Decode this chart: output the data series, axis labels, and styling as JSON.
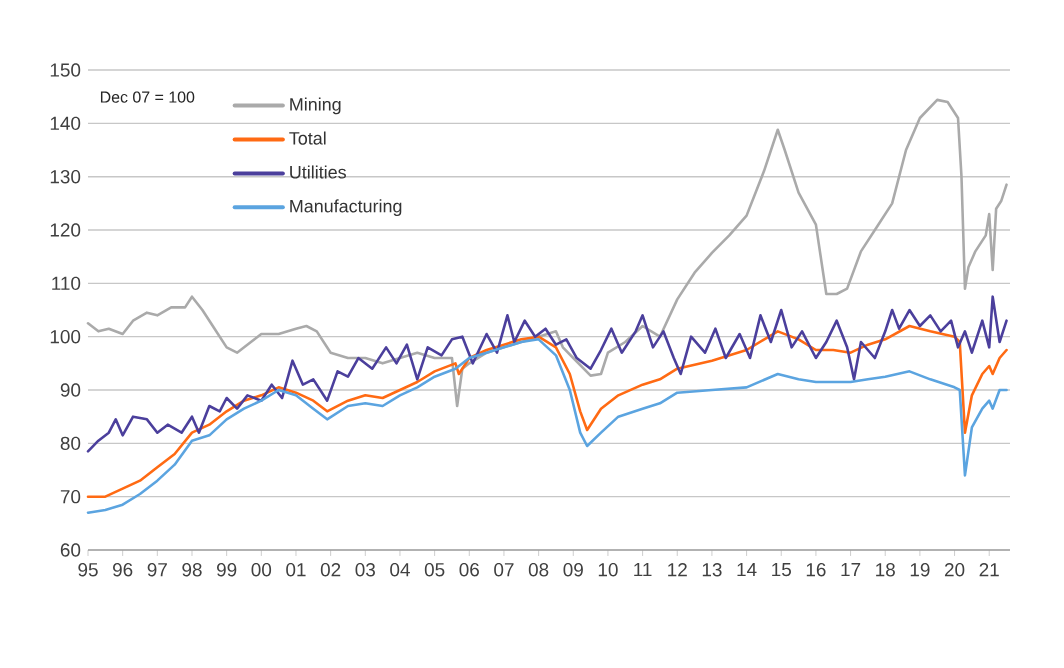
{
  "chart_data": {
    "type": "line",
    "annotations": [
      "Dec 07 = 100"
    ],
    "xlim": [
      1995,
      2021.6
    ],
    "xticks": [
      {
        "value": 1995,
        "label": "95"
      },
      {
        "value": 1996,
        "label": "96"
      },
      {
        "value": 1997,
        "label": "97"
      },
      {
        "value": 1998,
        "label": "98"
      },
      {
        "value": 1999,
        "label": "99"
      },
      {
        "value": 2000,
        "label": "00"
      },
      {
        "value": 2001,
        "label": "01"
      },
      {
        "value": 2002,
        "label": "02"
      },
      {
        "value": 2003,
        "label": "03"
      },
      {
        "value": 2004,
        "label": "04"
      },
      {
        "value": 2005,
        "label": "05"
      },
      {
        "value": 2006,
        "label": "06"
      },
      {
        "value": 2007,
        "label": "07"
      },
      {
        "value": 2008,
        "label": "08"
      },
      {
        "value": 2009,
        "label": "09"
      },
      {
        "value": 2010,
        "label": "10"
      },
      {
        "value": 2011,
        "label": "11"
      },
      {
        "value": 2012,
        "label": "12"
      },
      {
        "value": 2013,
        "label": "13"
      },
      {
        "value": 2014,
        "label": "14"
      },
      {
        "value": 2015,
        "label": "15"
      },
      {
        "value": 2016,
        "label": "16"
      },
      {
        "value": 2017,
        "label": "17"
      },
      {
        "value": 2018,
        "label": "18"
      },
      {
        "value": 2019,
        "label": "19"
      },
      {
        "value": 2020,
        "label": "20"
      },
      {
        "value": 2021,
        "label": "21"
      }
    ],
    "ylim": [
      60,
      150
    ],
    "yticks": [
      60,
      70,
      80,
      90,
      100,
      110,
      120,
      130,
      140,
      150
    ],
    "grid": "y",
    "legend": "top left",
    "series": [
      {
        "name": "Mining",
        "color": "#aaaaaa",
        "x": [
          1995,
          1995.3,
          1995.6,
          1996,
          1996.3,
          1996.7,
          1997,
          1997.4,
          1997.8,
          1998,
          1998.3,
          1998.6,
          1999,
          1999.3,
          1999.7,
          2000,
          2000.5,
          2001,
          2001.3,
          2001.6,
          2002,
          2002.5,
          2003,
          2003.5,
          2004,
          2004.5,
          2005,
          2005.5,
          2005.65,
          2005.8,
          2006,
          2006.5,
          2007,
          2007.5,
          2008,
          2008.5,
          2008.7,
          2009,
          2009.5,
          2009.8,
          2010,
          2010.5,
          2011,
          2011.5,
          2012,
          2012.5,
          2013,
          2013.5,
          2014,
          2014.5,
          2014.9,
          2015.1,
          2015.5,
          2016,
          2016.3,
          2016.6,
          2016.9,
          2017.3,
          2017.8,
          2018.2,
          2018.6,
          2019,
          2019.5,
          2019.8,
          2020.1,
          2020.2,
          2020.3,
          2020.4,
          2020.6,
          2020.9,
          2021,
          2021.1,
          2021.2,
          2021.35,
          2021.5
        ],
        "values": [
          102.5,
          101,
          101.5,
          100.5,
          103,
          104.5,
          104,
          105.5,
          105.5,
          107.5,
          105,
          102,
          98,
          97,
          99,
          100.5,
          100.5,
          101.5,
          102,
          101,
          97,
          96,
          96,
          95,
          96,
          97,
          96,
          96,
          87,
          94,
          95,
          97,
          98,
          99,
          100,
          101,
          98,
          96,
          92.7,
          93,
          97,
          99,
          102,
          100,
          107,
          112,
          115.7,
          119,
          122.7,
          131,
          138.8,
          135,
          127,
          121,
          108,
          108,
          109,
          116,
          121,
          125,
          135,
          141,
          144.4,
          144,
          141,
          130,
          109,
          113,
          116,
          119,
          123,
          112.5,
          124,
          125.5,
          128.5
        ]
      },
      {
        "name": "Total",
        "color": "#ff6a13",
        "x": [
          1995,
          1995.5,
          1996,
          1996.5,
          1997,
          1997.5,
          1998,
          1998.5,
          1999,
          1999.5,
          2000,
          2000.5,
          2001,
          2001.5,
          2001.9,
          2002.5,
          2003,
          2003.5,
          2004,
          2004.5,
          2005,
          2005.6,
          2005.7,
          2006,
          2006.5,
          2007,
          2007.5,
          2008,
          2008.5,
          2008.9,
          2009.2,
          2009.4,
          2009.8,
          2010.3,
          2011,
          2011.5,
          2012,
          2013,
          2014,
          2014.9,
          2015.5,
          2016,
          2016.5,
          2017,
          2017.5,
          2018,
          2018.7,
          2019.3,
          2020,
          2020.15,
          2020.3,
          2020.5,
          2020.8,
          2021,
          2021.1,
          2021.3,
          2021.5
        ],
        "values": [
          70,
          70,
          71.5,
          73,
          75.5,
          78,
          82,
          83.5,
          86,
          88,
          89,
          90.5,
          89.5,
          88,
          86,
          88,
          89,
          88.5,
          90,
          91.5,
          93.5,
          95,
          93,
          96,
          97.5,
          98.5,
          99.5,
          100,
          98,
          93,
          86,
          82.5,
          86.5,
          89,
          91,
          92,
          94,
          95.5,
          97.5,
          101,
          99.5,
          97.5,
          97.5,
          97,
          98.5,
          99.5,
          102,
          101,
          100,
          99,
          82,
          89,
          93,
          94.5,
          93,
          96,
          97.5
        ]
      },
      {
        "name": "Utilities",
        "color": "#4b3f9c",
        "x": [
          1995,
          1995.3,
          1995.6,
          1995.8,
          1996,
          1996.3,
          1996.7,
          1997,
          1997.3,
          1997.7,
          1998,
          1998.2,
          1998.5,
          1998.8,
          1999,
          1999.3,
          1999.6,
          2000,
          2000.3,
          2000.6,
          2000.9,
          2001.2,
          2001.5,
          2001.9,
          2002.2,
          2002.5,
          2002.8,
          2003.2,
          2003.6,
          2003.9,
          2004.2,
          2004.5,
          2004.8,
          2005.2,
          2005.5,
          2005.8,
          2006.1,
          2006.5,
          2006.8,
          2007.1,
          2007.3,
          2007.6,
          2007.9,
          2008.2,
          2008.5,
          2008.8,
          2009.1,
          2009.5,
          2009.8,
          2010.1,
          2010.4,
          2010.8,
          2011,
          2011.3,
          2011.6,
          2011.9,
          2012.1,
          2012.4,
          2012.8,
          2013.1,
          2013.4,
          2013.8,
          2014.1,
          2014.4,
          2014.7,
          2015,
          2015.3,
          2015.6,
          2016,
          2016.3,
          2016.6,
          2016.9,
          2017.1,
          2017.3,
          2017.7,
          2018,
          2018.2,
          2018.4,
          2018.7,
          2019,
          2019.3,
          2019.6,
          2019.9,
          2020.1,
          2020.3,
          2020.5,
          2020.8,
          2021,
          2021.1,
          2021.3,
          2021.5
        ],
        "values": [
          78.5,
          80.5,
          82,
          84.5,
          81.5,
          85,
          84.5,
          82,
          83.5,
          82,
          85,
          82,
          87,
          86,
          88.5,
          86.5,
          89,
          88,
          91,
          88.5,
          95.5,
          91,
          92,
          88,
          93.5,
          92.5,
          96,
          94,
          98,
          95,
          98.5,
          92,
          98,
          96.5,
          99.5,
          100,
          95,
          100.5,
          97,
          104,
          99,
          103,
          100,
          101.5,
          98.5,
          99.5,
          96,
          94,
          97.5,
          101.5,
          97,
          101,
          104,
          98,
          101,
          96,
          93,
          100,
          97,
          101.5,
          96,
          100.5,
          96,
          104,
          99,
          105,
          98,
          101,
          96,
          99,
          103,
          98,
          92,
          99,
          96,
          101,
          105,
          101.5,
          105,
          102,
          104,
          101,
          103,
          98,
          101,
          97,
          103,
          98,
          107.5,
          99,
          103
        ]
      },
      {
        "name": "Manufacturing",
        "color": "#5ba4e0",
        "x": [
          1995,
          1995.5,
          1996,
          1996.5,
          1997,
          1997.5,
          1998,
          1998.5,
          1999,
          1999.5,
          2000,
          2000.5,
          2001,
          2001.5,
          2001.9,
          2002.5,
          2003,
          2003.5,
          2004,
          2004.5,
          2005,
          2005.6,
          2006,
          2006.5,
          2007,
          2007.5,
          2008,
          2008.5,
          2008.9,
          2009.2,
          2009.4,
          2009.8,
          2010.3,
          2011,
          2011.5,
          2012,
          2013,
          2014,
          2014.9,
          2015.5,
          2016,
          2016.5,
          2017,
          2017.5,
          2018,
          2018.7,
          2019.3,
          2020,
          2020.15,
          2020.3,
          2020.5,
          2020.8,
          2021,
          2021.1,
          2021.3,
          2021.5
        ],
        "values": [
          67,
          67.5,
          68.5,
          70.5,
          73,
          76,
          80.5,
          81.5,
          84.5,
          86.5,
          88,
          90,
          89,
          86.5,
          84.5,
          87,
          87.5,
          87,
          89,
          90.5,
          92.5,
          94,
          96,
          97,
          98,
          99,
          99.5,
          96.5,
          90,
          82,
          79.5,
          82,
          85,
          86.5,
          87.5,
          89.5,
          90,
          90.5,
          93,
          92,
          91.5,
          91.5,
          91.5,
          92,
          92.5,
          93.5,
          92,
          90.5,
          90,
          74,
          83,
          86.5,
          88,
          86.5,
          90,
          90
        ]
      }
    ]
  }
}
